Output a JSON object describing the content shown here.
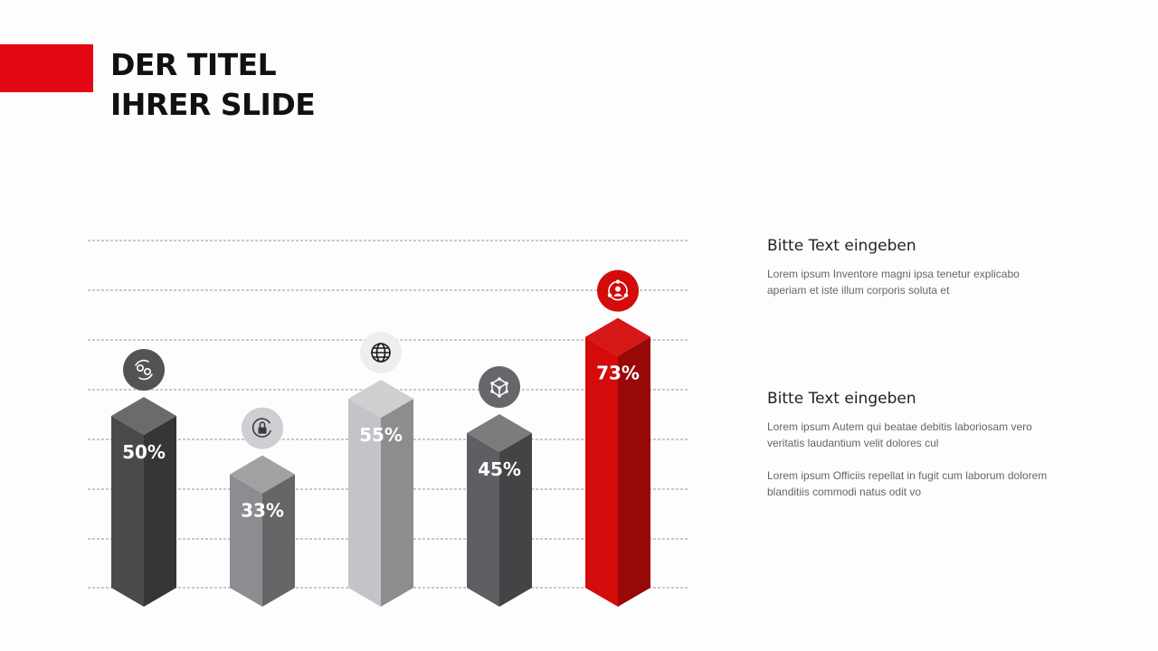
{
  "slide": {
    "title_line1": "DER TITEL",
    "title_line2": "IHRER SLIDE",
    "accent_color": "#e30613"
  },
  "chart_data": {
    "type": "bar",
    "categories": [
      "",
      "",
      "",
      "",
      ""
    ],
    "values": [
      50,
      33,
      55,
      45,
      73
    ],
    "value_labels": [
      "50%",
      "33%",
      "55%",
      "45%",
      "73%"
    ],
    "icons": [
      "people-exchange-icon",
      "lock-refresh-icon",
      "globe-icon",
      "network-cube-icon",
      "user-network-icon"
    ],
    "colors": [
      "#4a4a4d",
      "#8d8d91",
      "#c4c4c8",
      "#5f5f63",
      "#d40b0b"
    ],
    "ylim": [
      0,
      100
    ],
    "grid": true,
    "legend": "none",
    "title": "",
    "xlabel": "",
    "ylabel": ""
  },
  "text_blocks": [
    {
      "heading": "Bitte Text eingeben",
      "paragraphs": [
        "Lorem ipsum Inventore magni ipsa tenetur explicabo aperiam et iste illum corporis soluta et"
      ]
    },
    {
      "heading": "Bitte Text eingeben",
      "paragraphs": [
        "Lorem ipsum Autem qui beatae debitis laboriosam vero veritatis laudantium velit dolores cul",
        "Lorem ipsum Officiis repellat in fugit cum laborum dolorem blanditiis commodi natus odit vo"
      ]
    }
  ]
}
